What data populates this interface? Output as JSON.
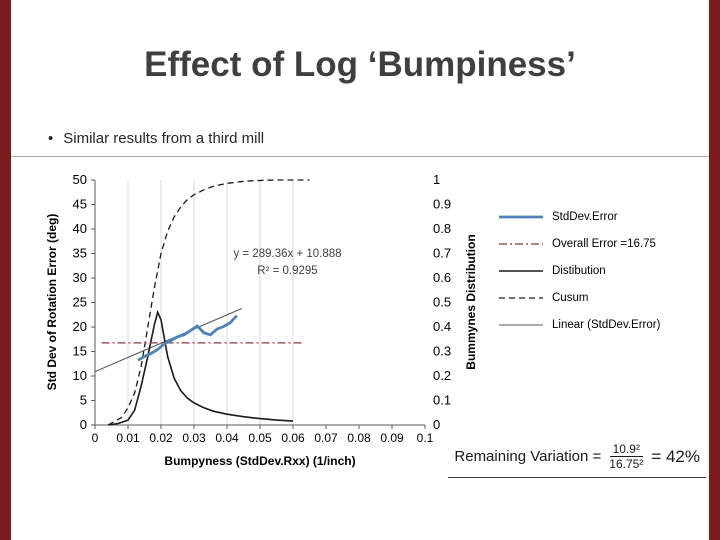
{
  "slide": {
    "title": "Effect of Log ‘Bumpiness’",
    "bullet_glyph": "•",
    "bullet": "Similar results from a third mill"
  },
  "chart_data": {
    "type": "line",
    "legend_position": "right",
    "x_axis": {
      "label": "Bumpyness (StdDev.Rxx) (1/inch)",
      "min": 0,
      "max": 0.1,
      "tick_labels": [
        "0",
        "0.01",
        "0.02",
        "0.03",
        "0.04",
        "0.05",
        "0.06",
        "0.07",
        "0.08",
        "0.09",
        "0.1"
      ],
      "gridline_ticks": [
        0.01,
        0.02,
        0.03,
        0.04,
        0.05,
        0.06
      ]
    },
    "y_left": {
      "label": "Std Dev of Rotation Error (deg)",
      "min": 0,
      "max": 50,
      "tick_labels": [
        "0",
        "5",
        "10",
        "15",
        "20",
        "25",
        "30",
        "35",
        "40",
        "45",
        "50"
      ]
    },
    "y_right": {
      "label": "Bummynes Distribution",
      "min": 0,
      "max": 1,
      "tick_labels": [
        "0",
        "0.1",
        "0.2",
        "0.3",
        "0.4",
        "0.5",
        "0.6",
        "0.7",
        "0.8",
        "0.9",
        "1"
      ]
    },
    "annotation": {
      "line1": "y = 289.36x + 10.888",
      "line2": "R² = 0.9295"
    },
    "series": [
      {
        "name": "StdDev.Error",
        "axis": "left",
        "color": "#4f81bd",
        "width": 2.8,
        "dash": "",
        "points": [
          [
            0.013,
            13.2
          ],
          [
            0.015,
            14
          ],
          [
            0.017,
            14.6
          ],
          [
            0.019,
            15.4
          ],
          [
            0.021,
            16.6
          ],
          [
            0.023,
            17.2
          ],
          [
            0.025,
            18
          ],
          [
            0.027,
            18.4
          ],
          [
            0.029,
            19.3
          ],
          [
            0.031,
            20.2
          ],
          [
            0.033,
            18.8
          ],
          [
            0.035,
            18.4
          ],
          [
            0.037,
            19.6
          ],
          [
            0.039,
            20.1
          ],
          [
            0.041,
            20.9
          ],
          [
            0.043,
            22.3
          ]
        ]
      },
      {
        "name": "Overall Error =16.75",
        "axis": "left",
        "color": "#953735",
        "width": 1.3,
        "dash": "8 3 2 3",
        "points": [
          [
            0.002,
            16.75
          ],
          [
            0.063,
            16.75
          ]
        ]
      },
      {
        "name": "Distibution",
        "axis": "left",
        "color": "#1a1a1a",
        "width": 1.6,
        "dash": "",
        "points": [
          [
            0.004,
            0
          ],
          [
            0.007,
            0.3
          ],
          [
            0.01,
            1
          ],
          [
            0.012,
            3
          ],
          [
            0.014,
            8
          ],
          [
            0.016,
            14
          ],
          [
            0.018,
            20.5
          ],
          [
            0.019,
            23
          ],
          [
            0.02,
            21.5
          ],
          [
            0.022,
            14
          ],
          [
            0.024,
            9.5
          ],
          [
            0.026,
            7
          ],
          [
            0.028,
            5.5
          ],
          [
            0.03,
            4.5
          ],
          [
            0.033,
            3.5
          ],
          [
            0.036,
            2.8
          ],
          [
            0.04,
            2.2
          ],
          [
            0.045,
            1.7
          ],
          [
            0.05,
            1.3
          ],
          [
            0.055,
            1
          ],
          [
            0.06,
            0.8
          ]
        ]
      },
      {
        "name": "Cusum",
        "axis": "right",
        "color": "#1a1a1a",
        "width": 1.3,
        "dash": "6 4",
        "points": [
          [
            0.004,
            0
          ],
          [
            0.008,
            0.03
          ],
          [
            0.01,
            0.07
          ],
          [
            0.012,
            0.13
          ],
          [
            0.014,
            0.24
          ],
          [
            0.016,
            0.4
          ],
          [
            0.018,
            0.56
          ],
          [
            0.02,
            0.7
          ],
          [
            0.022,
            0.79
          ],
          [
            0.024,
            0.85
          ],
          [
            0.026,
            0.89
          ],
          [
            0.028,
            0.92
          ],
          [
            0.03,
            0.94
          ],
          [
            0.033,
            0.96
          ],
          [
            0.036,
            0.975
          ],
          [
            0.04,
            0.986
          ],
          [
            0.044,
            0.993
          ],
          [
            0.048,
            0.997
          ],
          [
            0.052,
            0.999
          ],
          [
            0.056,
            1
          ],
          [
            0.065,
            1
          ]
        ]
      },
      {
        "name": "Linear (StdDev.Error)",
        "axis": "left",
        "color": "#595959",
        "width": 1.1,
        "dash": "",
        "points": [
          [
            0,
            10.888
          ],
          [
            0.0445,
            23.77
          ]
        ]
      }
    ]
  },
  "footer": {
    "remaining_label": "Remaining Variation =",
    "fraction_numerator": "10.9²",
    "fraction_denominator": "16.75²",
    "result": "= 42%"
  }
}
